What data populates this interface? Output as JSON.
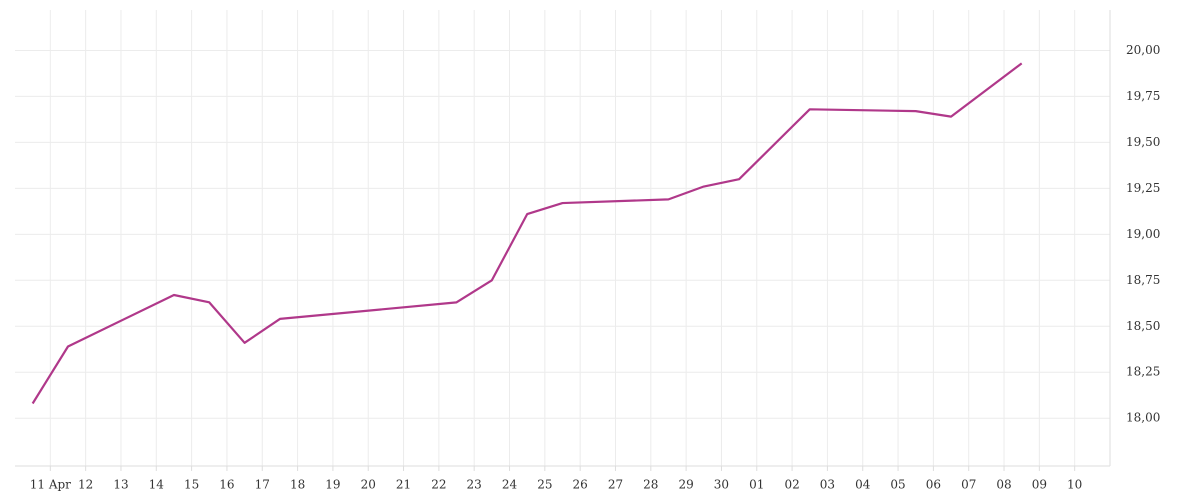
{
  "chart_data": {
    "type": "line",
    "x": [
      -0.5,
      0.5,
      3.5,
      4.5,
      5.5,
      6.5,
      11.5,
      12.5,
      13.5,
      14.5,
      17.5,
      18.5,
      19.5,
      21.5,
      24.5,
      25.5,
      27.5
    ],
    "series": [
      {
        "color": "#b0388a",
        "values": [
          18.08,
          18.39,
          18.67,
          18.63,
          18.41,
          18.54,
          18.63,
          18.75,
          19.11,
          19.17,
          19.19,
          19.26,
          19.3,
          19.68,
          19.67,
          19.64,
          19.93
        ]
      }
    ],
    "xlim": [
      -1,
      30
    ],
    "xticks": [
      {
        "value": 0,
        "label": "11 Apr"
      },
      {
        "value": 1,
        "label": "12"
      },
      {
        "value": 2,
        "label": "13"
      },
      {
        "value": 3,
        "label": "14"
      },
      {
        "value": 4,
        "label": "15"
      },
      {
        "value": 5,
        "label": "16"
      },
      {
        "value": 6,
        "label": "17"
      },
      {
        "value": 7,
        "label": "18"
      },
      {
        "value": 8,
        "label": "19"
      },
      {
        "value": 9,
        "label": "20"
      },
      {
        "value": 10,
        "label": "21"
      },
      {
        "value": 11,
        "label": "22"
      },
      {
        "value": 12,
        "label": "23"
      },
      {
        "value": 13,
        "label": "24"
      },
      {
        "value": 14,
        "label": "25"
      },
      {
        "value": 15,
        "label": "26"
      },
      {
        "value": 16,
        "label": "27"
      },
      {
        "value": 17,
        "label": "28"
      },
      {
        "value": 18,
        "label": "29"
      },
      {
        "value": 19,
        "label": "30"
      },
      {
        "value": 20,
        "label": "01"
      },
      {
        "value": 21,
        "label": "02"
      },
      {
        "value": 22,
        "label": "03"
      },
      {
        "value": 23,
        "label": "04"
      },
      {
        "value": 24,
        "label": "05"
      },
      {
        "value": 25,
        "label": "06"
      },
      {
        "value": 26,
        "label": "07"
      },
      {
        "value": 27,
        "label": "08"
      },
      {
        "value": 28,
        "label": "09"
      },
      {
        "value": 29,
        "label": "10"
      }
    ],
    "ylim": [
      17.74,
      20.22
    ],
    "yticks": [
      {
        "value": 18,
        "label": "18,00"
      },
      {
        "value": 18.25,
        "label": "18,25"
      },
      {
        "value": 18.5,
        "label": "18,50"
      },
      {
        "value": 18.75,
        "label": "18,75"
      },
      {
        "value": 19,
        "label": "19,00"
      },
      {
        "value": 19.25,
        "label": "19,25"
      },
      {
        "value": 19.5,
        "label": "19,50"
      },
      {
        "value": 19.75,
        "label": "19,75"
      },
      {
        "value": 20,
        "label": "20,00"
      }
    ],
    "grid": true
  }
}
